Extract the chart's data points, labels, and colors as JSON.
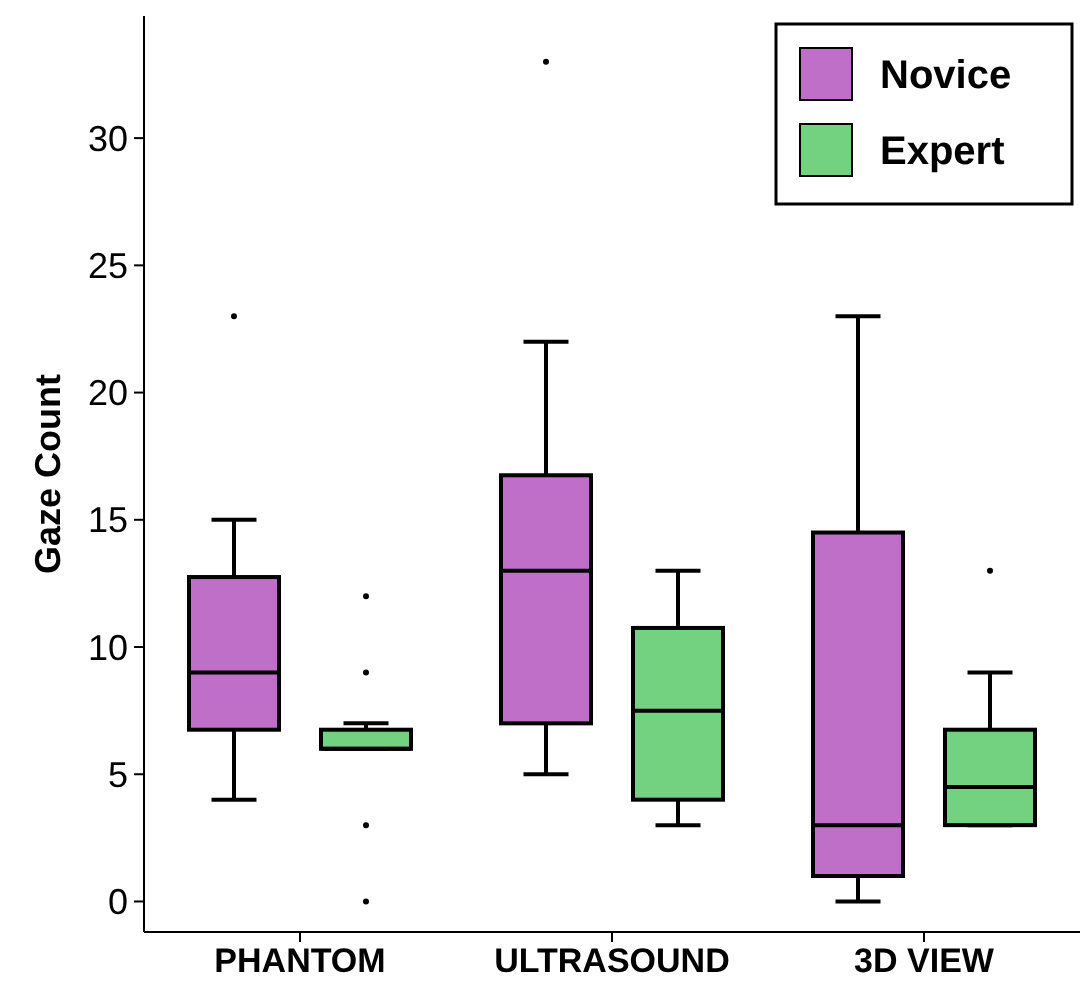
{
  "chart_data": {
    "type": "box",
    "ylabel": "Gaze Count",
    "categories": [
      "PHANTOM",
      "ULTRASOUND",
      "3D VIEW"
    ],
    "ylim": [
      -1.2,
      34.8
    ],
    "yticks": [
      0,
      5,
      10,
      15,
      20,
      25,
      30
    ],
    "grid": false,
    "legend": "top right",
    "series": [
      {
        "name": "Novice",
        "color": "#bf6fc8",
        "boxes": [
          {
            "low": 4,
            "q1": 6.75,
            "median": 9,
            "q3": 12.75,
            "high": 15,
            "outliers": [
              23
            ]
          },
          {
            "low": 5,
            "q1": 7,
            "median": 13,
            "q3": 16.75,
            "high": 22,
            "outliers": [
              33
            ]
          },
          {
            "low": 0,
            "q1": 1,
            "median": 3,
            "q3": 14.5,
            "high": 23
          }
        ]
      },
      {
        "name": "Expert",
        "color": "#72d27f",
        "boxes": [
          {
            "low": 6,
            "q1": 6,
            "median": 6,
            "q3": 6.75,
            "high": 7,
            "outliers": [
              0,
              3,
              9,
              12
            ]
          },
          {
            "low": 3,
            "q1": 4,
            "median": 7.5,
            "q3": 10.75,
            "high": 13
          },
          {
            "low": 3,
            "q1": 3,
            "median": 4.5,
            "q3": 6.75,
            "high": 9,
            "outliers": [
              13
            ]
          }
        ]
      }
    ]
  }
}
